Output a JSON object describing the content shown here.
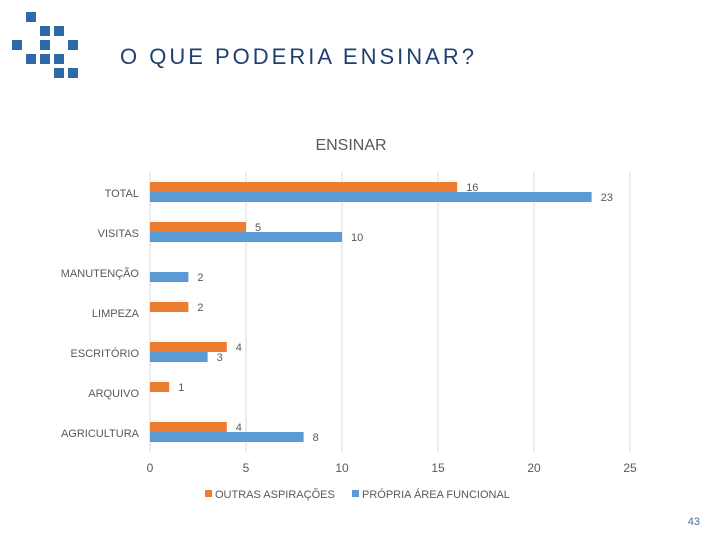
{
  "slide": {
    "title": "O QUE PODERIA ENSINAR?",
    "page_number": "43"
  },
  "colors": {
    "logo": "#2d6aa7",
    "title": "#1f3f73",
    "series_orange": "#ed7d31",
    "series_blue": "#5b9bd5",
    "grid": "#d9d9d9",
    "text": "#595959"
  },
  "chart_data": {
    "type": "bar",
    "orientation": "horizontal",
    "title": "ENSINAR",
    "categories": [
      "TOTAL",
      "VISITAS",
      "MANUTENÇÃO",
      "LIMPEZA",
      "ESCRITÓRIO",
      "ARQUIVO",
      "AGRICULTURA"
    ],
    "series": [
      {
        "name": "OUTRAS ASPIRAÇÕES",
        "color": "#ed7d31",
        "values": [
          16,
          5,
          null,
          2,
          4,
          1,
          4
        ]
      },
      {
        "name": "PRÓPRIA ÁREA FUNCIONAL",
        "color": "#5b9bd5",
        "values": [
          23,
          10,
          2,
          null,
          3,
          null,
          8
        ]
      }
    ],
    "xlim": [
      0,
      25
    ],
    "xticks": [
      0,
      5,
      10,
      15,
      20,
      25
    ],
    "grid": true,
    "legend": "bottom"
  }
}
